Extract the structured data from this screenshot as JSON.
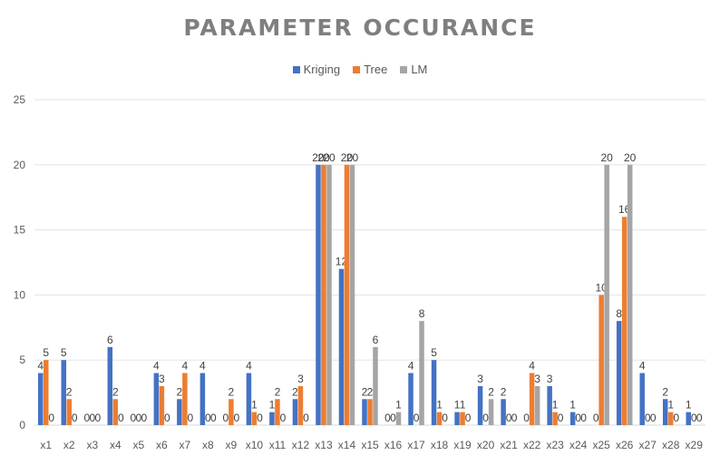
{
  "chart_data": {
    "type": "bar",
    "title": "PARAMETER OCCURANCE",
    "xlabel": "",
    "ylabel": "",
    "ylim": [
      0,
      25
    ],
    "yticks": [
      0,
      5,
      10,
      15,
      20,
      25
    ],
    "grid": true,
    "legend_position": "top",
    "categories": [
      "x1",
      "x2",
      "x3",
      "x4",
      "x5",
      "x6",
      "x7",
      "x8",
      "x9",
      "x10",
      "x11",
      "x12",
      "x13",
      "x14",
      "x15",
      "x16",
      "x17",
      "x18",
      "x19",
      "x20",
      "x21",
      "x22",
      "x23",
      "x24",
      "x25",
      "x26",
      "x27",
      "x28",
      "x29"
    ],
    "series": [
      {
        "name": "Kriging",
        "color": "#4472c4",
        "values": [
          4,
          5,
          0,
          6,
          0,
          4,
          2,
          4,
          0,
          4,
          1,
          2,
          20,
          12,
          2,
          0,
          4,
          5,
          1,
          3,
          2,
          0,
          3,
          1,
          0,
          8,
          4,
          2,
          1
        ]
      },
      {
        "name": "Tree",
        "color": "#ed7d31",
        "values": [
          5,
          2,
          0,
          2,
          0,
          3,
          4,
          0,
          2,
          1,
          2,
          3,
          20,
          20,
          2,
          0,
          0,
          1,
          1,
          0,
          0,
          4,
          1,
          0,
          10,
          16,
          0,
          1,
          0
        ]
      },
      {
        "name": "LM",
        "color": "#a5a5a5",
        "values": [
          0,
          0,
          0,
          0,
          0,
          0,
          0,
          0,
          0,
          0,
          0,
          0,
          20,
          20,
          6,
          1,
          8,
          0,
          0,
          2,
          0,
          3,
          0,
          0,
          20,
          20,
          0,
          0,
          0
        ]
      }
    ]
  }
}
